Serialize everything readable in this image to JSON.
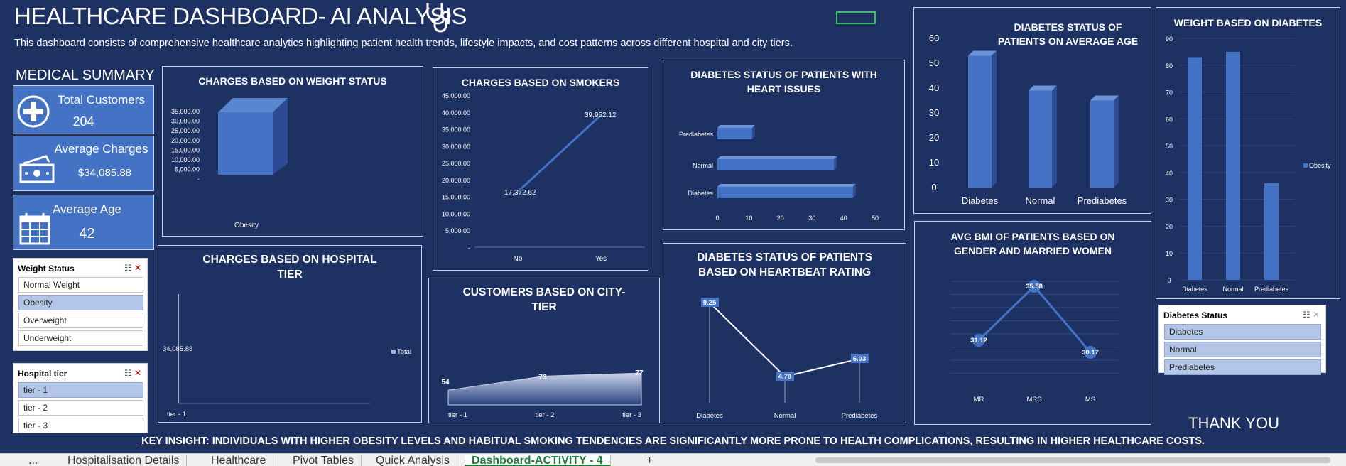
{
  "header": {
    "title": "HEALTHCARE DASHBOARD- AI ANALYSIS",
    "description": "This dashboard consists of comprehensive healthcare analytics highlighting patient health trends, lifestyle impacts, and cost patterns across different hospital and city tiers.",
    "icon": "stethoscope-icon"
  },
  "summary": {
    "title": "MEDICAL SUMMARY",
    "kpis": [
      {
        "label": "Total Customers",
        "value": "204",
        "icon": "medical-cross-icon"
      },
      {
        "label": "Average Charges",
        "value": "$34,085.88",
        "icon": "cash-icon"
      },
      {
        "label": "Average Age",
        "value": "42",
        "icon": "calendar-icon"
      }
    ]
  },
  "slicers": {
    "weight": {
      "title": "Weight Status",
      "items": [
        "Normal Weight",
        "Obesity",
        "Overweight",
        "Underweight"
      ],
      "selected": "Obesity"
    },
    "hospital": {
      "title": "Hospital tier",
      "items": [
        "tier - 1",
        "tier - 2",
        "tier - 3"
      ],
      "selected": "tier - 1"
    },
    "diabetes": {
      "title": "Diabetes Status",
      "items": [
        "Diabetes",
        "Normal",
        "Prediabetes"
      ],
      "selected": "all"
    }
  },
  "charts": {
    "weight": {
      "title": "CHARGES BASED ON WEIGHT STATUS",
      "yticks": [
        "35,000.00",
        "30,000.00",
        "25,000.00",
        "20,000.00",
        "15,000.00",
        "10,000.00",
        "5,000.00",
        "-"
      ]
    },
    "smokers": {
      "title": "CHARGES BASED ON SMOKERS",
      "yticks": [
        "45,000.00",
        "40,000.00",
        "35,000.00",
        "30,000.00",
        "25,000.00",
        "20,000.00",
        "15,000.00",
        "10,000.00",
        "5,000.00",
        "-"
      ],
      "labels": [
        "17,372.62",
        "39,952.12"
      ]
    },
    "heart": {
      "title_l1": "DIABETES STATUS OF PATIENTS WITH",
      "title_l2": "HEART ISSUES",
      "xticks": [
        "0",
        "10",
        "20",
        "30",
        "40",
        "50"
      ]
    },
    "age": {
      "title_l1": "DIABETES STATUS OF",
      "title_l2": "PATIENTS ON AVERAGE AGE",
      "yticks": [
        "60",
        "50",
        "40",
        "30",
        "20",
        "10",
        "0"
      ]
    },
    "wdiab": {
      "title": "WEIGHT BASED ON DIABETES",
      "yticks": [
        "90",
        "80",
        "70",
        "60",
        "50",
        "40",
        "30",
        "20",
        "10",
        "0"
      ],
      "legend": "Obesity"
    },
    "hosp": {
      "title_l1": "CHARGES BASED ON HOSPITAL",
      "title_l2": "TIER",
      "label": "34,085.88",
      "legend": "Total"
    },
    "city": {
      "title_l1": "CUSTOMERS BASED ON CITY-",
      "title_l2": "TIER"
    },
    "beat": {
      "title_l1": "DIABETES STATUS OF PATIENTS",
      "title_l2": "BASED ON HEARTBEAT RATING"
    },
    "bmi": {
      "title_l1": "AVG BMI OF PATIENTS BASED ON",
      "title_l2": "GENDER AND MARRIED WOMEN"
    }
  },
  "chart_data": [
    {
      "type": "bar",
      "title": "CHARGES BASED ON WEIGHT STATUS",
      "categories": [
        "Obesity"
      ],
      "values": [
        34085.88
      ],
      "ylim": [
        0,
        35000
      ]
    },
    {
      "type": "line",
      "title": "CHARGES BASED ON SMOKERS",
      "categories": [
        "No",
        "Yes"
      ],
      "values": [
        17372.62,
        39952.12
      ],
      "ylim": [
        0,
        45000
      ]
    },
    {
      "type": "bar",
      "title": "DIABETES STATUS OF PATIENTS WITH HEART ISSUES",
      "categories": [
        "Prediabetes",
        "Normal",
        "Diabetes"
      ],
      "values": [
        11,
        37,
        43
      ],
      "xlim": [
        0,
        50
      ]
    },
    {
      "type": "bar",
      "title": "DIABETES STATUS OF PATIENTS ON AVERAGE AGE",
      "categories": [
        "Diabetes",
        "Normal",
        "Prediabetes"
      ],
      "values": [
        53,
        39,
        35
      ],
      "ylim": [
        0,
        60
      ]
    },
    {
      "type": "bar",
      "title": "WEIGHT BASED ON DIABETES",
      "categories": [
        "Diabetes",
        "Normal",
        "Prediabetes"
      ],
      "series": [
        {
          "name": "Obesity",
          "values": [
            83,
            85,
            36
          ]
        }
      ],
      "ylim": [
        0,
        90
      ],
      "legend": "right"
    },
    {
      "type": "bar",
      "title": "CHARGES BASED ON HOSPITAL TIER",
      "categories": [
        "tier - 1"
      ],
      "series": [
        {
          "name": "Total",
          "values": [
            34085.88
          ]
        }
      ],
      "legend": "right"
    },
    {
      "type": "area",
      "title": "CUSTOMERS BASED ON CITY-TIER",
      "categories": [
        "tier - 1",
        "tier - 2",
        "tier - 3"
      ],
      "values": [
        54,
        73,
        77
      ]
    },
    {
      "type": "line",
      "title": "DIABETES STATUS OF PATIENTS BASED ON HEARTBEAT RATING",
      "categories": [
        "Diabetes",
        "Normal",
        "Prediabetes"
      ],
      "values": [
        9.25,
        4.78,
        6.03
      ]
    },
    {
      "type": "line",
      "title": "AVG BMI OF PATIENTS BASED ON GENDER AND MARRIED WOMEN",
      "categories": [
        "MR",
        "MRS",
        "MS"
      ],
      "values": [
        31.12,
        35.58,
        30.17
      ]
    }
  ],
  "footer": {
    "insight": "KEY INSIGHT: INDIVIDUALS WITH HIGHER OBESITY LEVELS AND HABITUAL SMOKING TENDENCIES ARE SIGNIFICANTLY MORE PRONE TO HEALTH COMPLICATIONS, RESULTING IN HIGHER HEALTHCARE COSTS.",
    "thanks": "THANK YOU"
  },
  "tabs": {
    "items": [
      "Hospitalisation Details",
      "Healthcare",
      "Pivot Tables",
      "Quick Analysis",
      "Dashboard-ACTIVITY - 4"
    ],
    "active": "Dashboard-ACTIVITY - 4",
    "nav": "...",
    "add": "+"
  },
  "colors": {
    "background": "#1e3163",
    "accent": "#4472c4",
    "slicer_selected": "#b4c6e7"
  }
}
